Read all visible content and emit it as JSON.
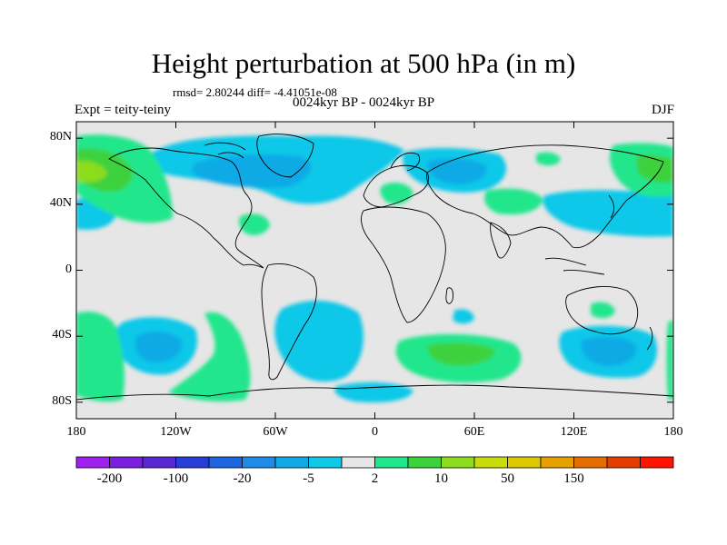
{
  "header": {
    "title": "Height perturbation at 500 hPa (in m)",
    "stats": "rmsd= 2.80244 diff= -4.41051e-08",
    "period": "0024kyr BP - 0024kyr BP",
    "experiment": "Expt = teity-teiny",
    "season": "DJF"
  },
  "map": {
    "projection": "cylindrical equidistant",
    "lon_range": [
      -180,
      180
    ],
    "lat_range": [
      -90,
      90
    ],
    "lat_ticks": [
      {
        "value": 80,
        "label": "80N"
      },
      {
        "value": 40,
        "label": "40N"
      },
      {
        "value": 0,
        "label": "0"
      },
      {
        "value": -40,
        "label": "40S"
      },
      {
        "value": -80,
        "label": "80S"
      }
    ],
    "lon_ticks": [
      {
        "value": -180,
        "label": "180"
      },
      {
        "value": -120,
        "label": "120W"
      },
      {
        "value": -60,
        "label": "60W"
      },
      {
        "value": 0,
        "label": "0"
      },
      {
        "value": 60,
        "label": "60E"
      },
      {
        "value": 120,
        "label": "120E"
      },
      {
        "value": 180,
        "label": "180"
      }
    ],
    "background_color": "#e6e6e6",
    "coastline_color": "#000000"
  },
  "colorbar": {
    "colors": [
      "#a020f0",
      "#7a1ee0",
      "#5a28d2",
      "#2a3cd8",
      "#1e64e0",
      "#1e8ce6",
      "#10aae6",
      "#10c8e8",
      "#e6e6e6",
      "#20e68c",
      "#3cd23c",
      "#8cdc1e",
      "#c8dc0a",
      "#dcc800",
      "#e6a000",
      "#e66e00",
      "#e63c00",
      "#ff1400"
    ],
    "labels": [
      {
        "after_box": 1,
        "text": "-200"
      },
      {
        "after_box": 3,
        "text": "-100"
      },
      {
        "after_box": 5,
        "text": "-20"
      },
      {
        "after_box": 7,
        "text": "-5"
      },
      {
        "after_box": 9,
        "text": "2"
      },
      {
        "after_box": 11,
        "text": "10"
      },
      {
        "after_box": 13,
        "text": "50"
      },
      {
        "after_box": 15,
        "text": "150"
      }
    ]
  }
}
